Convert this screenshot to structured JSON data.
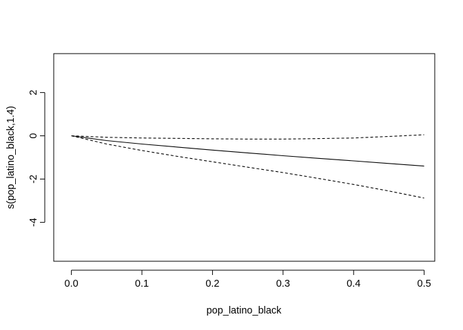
{
  "chart_data": {
    "type": "line",
    "title": "",
    "xlabel": "pop_latino_black",
    "ylabel": "s(pop_latino_black,1.4)",
    "xlim": [
      -0.025,
      0.515
    ],
    "ylim": [
      -5.8,
      3.8
    ],
    "xticks": [
      0.0,
      0.1,
      0.2,
      0.3,
      0.4,
      0.5
    ],
    "xtick_labels": [
      "0.0",
      "0.1",
      "0.2",
      "0.3",
      "0.4",
      "0.5"
    ],
    "yticks": [
      -4,
      -2,
      0,
      2
    ],
    "ytick_labels": [
      "-4",
      "-2",
      "0",
      "2"
    ],
    "grid": false,
    "series": [
      {
        "style": "solid",
        "x": [
          0.0,
          0.05,
          0.1,
          0.15,
          0.2,
          0.25,
          0.3,
          0.35,
          0.4,
          0.45,
          0.5
        ],
        "y": [
          0.0,
          -0.22,
          -0.38,
          -0.52,
          -0.66,
          -0.79,
          -0.92,
          -1.04,
          -1.16,
          -1.28,
          -1.4
        ]
      },
      {
        "style": "dashed",
        "x": [
          0.0,
          0.05,
          0.1,
          0.15,
          0.2,
          0.25,
          0.3,
          0.35,
          0.4,
          0.45,
          0.5
        ],
        "y": [
          0.0,
          -0.07,
          -0.1,
          -0.12,
          -0.14,
          -0.15,
          -0.15,
          -0.13,
          -0.1,
          -0.03,
          0.05
        ]
      },
      {
        "style": "dashed",
        "x": [
          0.0,
          0.05,
          0.1,
          0.15,
          0.2,
          0.25,
          0.3,
          0.35,
          0.4,
          0.45,
          0.5
        ],
        "y": [
          0.0,
          -0.38,
          -0.68,
          -0.95,
          -1.2,
          -1.45,
          -1.7,
          -1.97,
          -2.25,
          -2.55,
          -2.88
        ]
      }
    ]
  }
}
